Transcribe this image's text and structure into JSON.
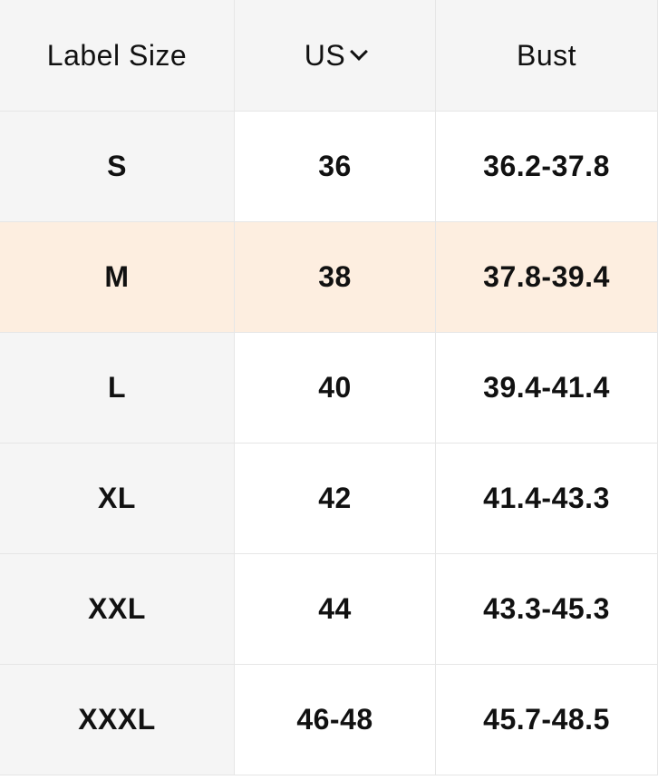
{
  "headers": {
    "label_size": "Label Size",
    "us": "US",
    "bust": "Bust"
  },
  "highlight_color": "#fdeee0",
  "rows": [
    {
      "label": "S",
      "us": "36",
      "bust": "36.2-37.8"
    },
    {
      "label": "M",
      "us": "38",
      "bust": "37.8-39.4",
      "highlighted": true
    },
    {
      "label": "L",
      "us": "40",
      "bust": "39.4-41.4"
    },
    {
      "label": "XL",
      "us": "42",
      "bust": "41.4-43.3"
    },
    {
      "label": "XXL",
      "us": "44",
      "bust": "43.3-45.3"
    },
    {
      "label": "XXXL",
      "us": "46-48",
      "bust": "45.7-48.5"
    }
  ]
}
